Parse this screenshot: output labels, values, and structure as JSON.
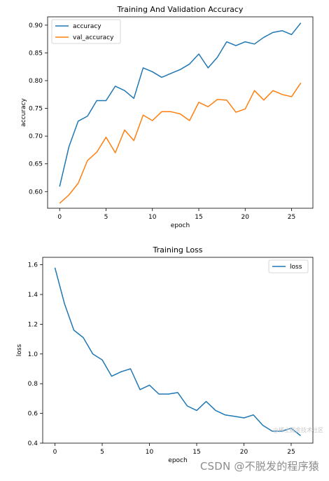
{
  "colors": {
    "blue": "#1f77b4",
    "orange": "#ff7f0e",
    "axis": "#000000"
  },
  "chart_data": [
    {
      "type": "line",
      "title": "Training And Validation Accuracy",
      "xlabel": "epoch",
      "ylabel": "accuracy",
      "xlim": [
        -1.3,
        27.3
      ],
      "ylim": [
        0.57,
        0.915
      ],
      "xticks": [
        0,
        5,
        10,
        15,
        20,
        25
      ],
      "xtick_labels": [
        "0",
        "5",
        "10",
        "15",
        "20",
        "25"
      ],
      "yticks": [
        0.6,
        0.65,
        0.7,
        0.75,
        0.8,
        0.85,
        0.9
      ],
      "ytick_labels": [
        "0.60",
        "0.65",
        "0.70",
        "0.75",
        "0.80",
        "0.85",
        "0.90"
      ],
      "legend_position": "top-left",
      "grid": false,
      "x": [
        0,
        1,
        2,
        3,
        4,
        5,
        6,
        7,
        8,
        9,
        10,
        11,
        12,
        13,
        14,
        15,
        16,
        17,
        18,
        19,
        20,
        21,
        22,
        23,
        24,
        25,
        26
      ],
      "series": [
        {
          "name": "accuracy",
          "color": "#1f77b4",
          "values": [
            0.609,
            0.681,
            0.727,
            0.736,
            0.764,
            0.764,
            0.79,
            0.782,
            0.768,
            0.823,
            0.816,
            0.806,
            0.813,
            0.82,
            0.83,
            0.848,
            0.823,
            0.842,
            0.87,
            0.863,
            0.87,
            0.866,
            0.878,
            0.887,
            0.89,
            0.883,
            0.904
          ]
        },
        {
          "name": "val_accuracy",
          "color": "#ff7f0e",
          "values": [
            0.579,
            0.594,
            0.615,
            0.656,
            0.671,
            0.698,
            0.67,
            0.711,
            0.692,
            0.738,
            0.728,
            0.744,
            0.744,
            0.74,
            0.728,
            0.761,
            0.753,
            0.766,
            0.765,
            0.743,
            0.749,
            0.782,
            0.765,
            0.782,
            0.775,
            0.771,
            0.796
          ]
        }
      ]
    },
    {
      "type": "line",
      "title": "Training Loss",
      "xlabel": "epoch",
      "ylabel": "loss",
      "xlim": [
        -1.3,
        27.3
      ],
      "ylim": [
        0.4,
        1.65
      ],
      "xticks": [
        0,
        5,
        10,
        15,
        20,
        25
      ],
      "xtick_labels": [
        "0",
        "5",
        "10",
        "15",
        "20",
        "25"
      ],
      "yticks": [
        0.4,
        0.6,
        0.8,
        1.0,
        1.2,
        1.4,
        1.6
      ],
      "ytick_labels": [
        "0.4",
        "0.6",
        "0.8",
        "1.0",
        "1.2",
        "1.4",
        "1.6"
      ],
      "legend_position": "top-right",
      "grid": false,
      "x": [
        0,
        1,
        2,
        3,
        4,
        5,
        6,
        7,
        8,
        9,
        10,
        11,
        12,
        13,
        14,
        15,
        16,
        17,
        18,
        19,
        20,
        21,
        22,
        23,
        24,
        25,
        26
      ],
      "series": [
        {
          "name": "loss",
          "color": "#1f77b4",
          "values": [
            1.58,
            1.34,
            1.16,
            1.11,
            1.0,
            0.96,
            0.85,
            0.88,
            0.9,
            0.76,
            0.79,
            0.73,
            0.73,
            0.74,
            0.65,
            0.62,
            0.68,
            0.62,
            0.59,
            0.58,
            0.57,
            0.59,
            0.52,
            0.48,
            0.48,
            0.5,
            0.45
          ]
        }
      ]
    }
  ],
  "watermark": {
    "main": "CSDN @不脱发的程序猿",
    "sub": "@稀土掘金技术社区"
  }
}
